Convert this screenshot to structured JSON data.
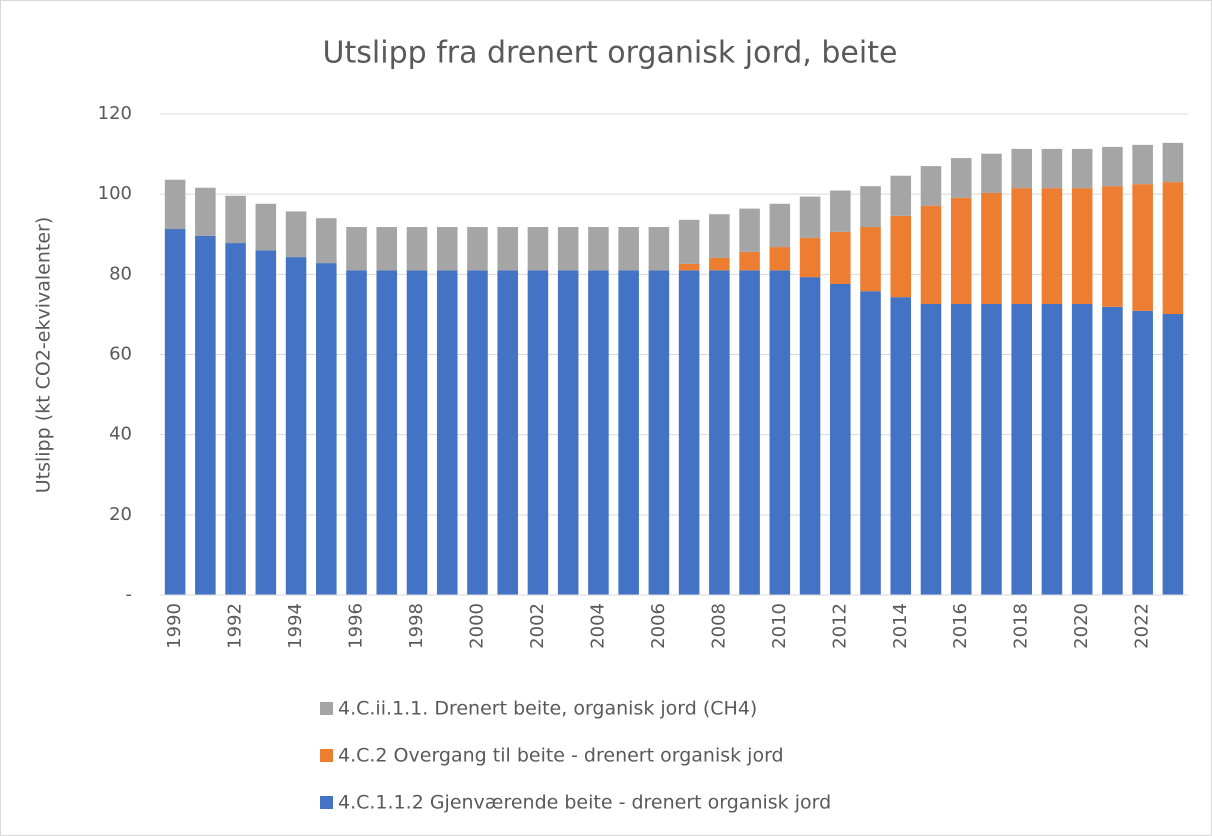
{
  "chart_data": {
    "type": "stacked_bar",
    "title": "Utslipp fra drenert organisk jord, beite",
    "y_label": "Utslipp (kt CO2-ekvivalenter)",
    "categories": [
      "1990",
      null,
      "1992",
      null,
      "1994",
      null,
      "1996",
      null,
      "1998",
      null,
      "2000",
      null,
      "2002",
      null,
      "2004",
      null,
      "2006",
      null,
      "2008",
      null,
      "2010",
      null,
      "2012",
      null,
      "2014",
      null,
      "2016",
      null,
      "2018",
      null,
      "2020",
      null,
      "2022",
      null
    ],
    "series": [
      {
        "name": "4.C.1.1.2 Gjenværende beite - drenert organisk jord",
        "color": "#4472c4",
        "values": [
          91.3,
          89.6,
          87.8,
          86.0,
          84.3,
          82.8,
          81,
          81,
          81,
          81,
          81,
          81,
          81,
          81,
          81,
          81,
          81,
          81,
          81,
          81,
          81,
          79.3,
          77.6,
          75.8,
          74.3,
          72.6,
          72.6,
          72.6,
          72.6,
          72.6,
          72.6,
          71.9,
          70.9,
          70.1
        ]
      },
      {
        "name": "4.C.2 Overgang til beite - drenert organisk jord",
        "color": "#ed7d31",
        "values": [
          0,
          0,
          0,
          0,
          0,
          0,
          0,
          0,
          0,
          0,
          0,
          0,
          0,
          0,
          0,
          0,
          0,
          1.6,
          3.1,
          4.6,
          5.8,
          9.8,
          13,
          16,
          20.3,
          24.5,
          26.5,
          27.7,
          28.9,
          28.9,
          28.9,
          30.1,
          31.6,
          32.9
        ]
      },
      {
        "name": "4.C.ii.1.1. Drenert beite, organisk jord (CH4)",
        "color": "#a5a5a5",
        "values": [
          12.3,
          12.0,
          11.8,
          11.6,
          11.4,
          11.2,
          10.8,
          10.8,
          10.8,
          10.8,
          10.8,
          10.8,
          10.8,
          10.8,
          10.8,
          10.8,
          10.8,
          11.0,
          10.9,
          10.8,
          10.8,
          10.3,
          10.3,
          10.2,
          10.0,
          9.9,
          9.9,
          9.8,
          9.8,
          9.8,
          9.8,
          9.8,
          9.8,
          9.8
        ]
      }
    ],
    "ylim": [
      0,
      120
    ],
    "yticks": [
      {
        "value": 0,
        "label": "-"
      },
      20,
      40,
      60,
      80,
      100,
      120
    ],
    "grid": true
  }
}
